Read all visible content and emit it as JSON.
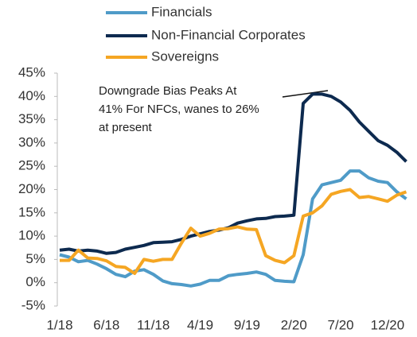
{
  "chart_data": {
    "type": "line",
    "categories": [
      "1/18",
      null,
      null,
      null,
      null,
      "6/18",
      null,
      null,
      null,
      null,
      "11/18",
      null,
      null,
      null,
      null,
      "4/19",
      null,
      null,
      null,
      null,
      "9/19",
      null,
      null,
      null,
      null,
      "2/20",
      null,
      null,
      null,
      null,
      "7/20",
      null,
      null,
      null,
      null,
      "12/20",
      null,
      null
    ],
    "series": [
      {
        "name": "Financials",
        "color": "#4f9bc8",
        "values": [
          6,
          5.5,
          4.5,
          4.8,
          4,
          3,
          1.8,
          1.3,
          2.5,
          2.8,
          1.8,
          0.4,
          -0.2,
          -0.4,
          -0.7,
          -0.3,
          0.5,
          0.5,
          1.5,
          1.8,
          2,
          2.3,
          1.8,
          0.5,
          0.3,
          0.2,
          6,
          18,
          21,
          21.5,
          22,
          24,
          24,
          22.5,
          21.8,
          21.5,
          19.5,
          18
        ]
      },
      {
        "name": "Non-Financial Corporates",
        "color": "#0d2a4f",
        "values": [
          7,
          7.2,
          6.8,
          7,
          6.8,
          6.3,
          6.5,
          7.2,
          7.6,
          8,
          8.6,
          8.7,
          8.8,
          9.3,
          10,
          10.5,
          11,
          11.3,
          11.8,
          12.8,
          13.3,
          13.7,
          13.8,
          14.2,
          14.3,
          14.5,
          38.5,
          40.5,
          40.5,
          40,
          38.8,
          37,
          34.5,
          32.5,
          30.5,
          29.5,
          28,
          26
        ]
      },
      {
        "name": "Sovereigns",
        "color": "#f5a623",
        "values": [
          4.8,
          4.8,
          7,
          5.3,
          5.2,
          4.7,
          3.5,
          3.3,
          2,
          5,
          4.6,
          5,
          5,
          8.5,
          11.7,
          10,
          10.6,
          11.5,
          11.6,
          12,
          11.5,
          11.4,
          5.8,
          4.8,
          4.3,
          5.8,
          14.3,
          15,
          16.5,
          19,
          19.6,
          20,
          18.3,
          18.5,
          18,
          17.5,
          18.8,
          19.5
        ]
      }
    ],
    "ylim": [
      -5,
      45
    ],
    "yticks": [
      {
        "value": -5,
        "label": "-5%"
      },
      {
        "value": 0,
        "label": "0%"
      },
      {
        "value": 5,
        "label": "5%"
      },
      {
        "value": 10,
        "label": "10%"
      },
      {
        "value": 15,
        "label": "15%"
      },
      {
        "value": 20,
        "label": "20%"
      },
      {
        "value": 25,
        "label": "25%"
      },
      {
        "value": 30,
        "label": "30%"
      },
      {
        "value": 35,
        "label": "35%"
      },
      {
        "value": 40,
        "label": "40%"
      },
      {
        "value": 45,
        "label": "45%"
      }
    ],
    "annotation": [
      "Downgrade Bias Peaks At",
      "41% For NFCs, wanes to 26%",
      "at present"
    ]
  }
}
